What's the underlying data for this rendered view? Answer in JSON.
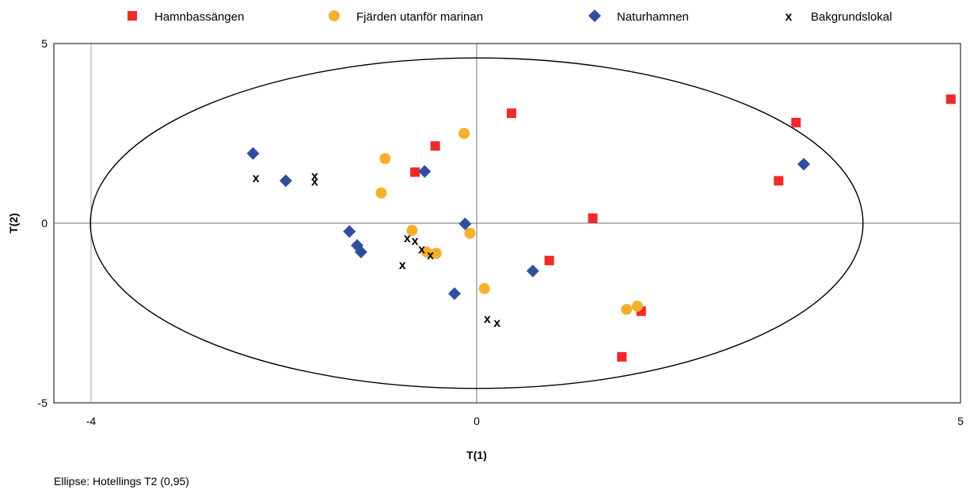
{
  "chart_data": {
    "type": "scatter",
    "title": "",
    "xlabel": "T(1)",
    "ylabel": "T(2)",
    "xlim": [
      -4,
      5
    ],
    "ylim": [
      -5,
      5
    ],
    "x_ticks": [
      -4,
      0,
      5
    ],
    "y_ticks": [
      -5,
      0,
      5
    ],
    "grid": "zero lines and x = -4 line",
    "legend_position": "top",
    "ellipse": {
      "label": "Ellipse: Hotellings T2 (0,95)",
      "center": [
        0,
        0
      ],
      "semi_axis_x": 4,
      "semi_axis_y": 4.6
    },
    "series": [
      {
        "name": "Hamnbassängen",
        "marker": "square",
        "color": "#ee2a2a",
        "points": [
          [
            0.36,
            3.06
          ],
          [
            -0.43,
            2.15
          ],
          [
            -0.64,
            1.42
          ],
          [
            3.3,
            2.8
          ],
          [
            3.12,
            1.18
          ],
          [
            4.9,
            3.45
          ],
          [
            1.2,
            0.14
          ],
          [
            0.75,
            -1.04
          ],
          [
            1.7,
            -2.45
          ],
          [
            1.5,
            -3.72
          ]
        ]
      },
      {
        "name": "Fjärden utanför marinan",
        "marker": "circle",
        "color": "#f5b02b",
        "points": [
          [
            -0.13,
            2.5
          ],
          [
            -0.95,
            1.8
          ],
          [
            -0.99,
            0.84
          ],
          [
            -0.67,
            -0.2
          ],
          [
            -0.07,
            -0.28
          ],
          [
            -0.52,
            -0.8
          ],
          [
            -0.42,
            -0.84
          ],
          [
            0.08,
            -1.82
          ],
          [
            1.55,
            -2.4
          ],
          [
            1.66,
            -2.31
          ]
        ]
      },
      {
        "name": "Naturhamnen",
        "marker": "diamond",
        "color": "#2f4f9e",
        "points": [
          [
            -2.32,
            1.94
          ],
          [
            -1.98,
            1.18
          ],
          [
            -0.54,
            1.44
          ],
          [
            3.38,
            1.64
          ],
          [
            -1.32,
            -0.23
          ],
          [
            -1.24,
            -0.62
          ],
          [
            -1.2,
            -0.8
          ],
          [
            -0.12,
            -0.02
          ],
          [
            0.58,
            -1.33
          ],
          [
            -0.23,
            -1.96
          ]
        ]
      },
      {
        "name": "Bakgrundslokal",
        "marker": "x",
        "color": "#000000",
        "points": [
          [
            -2.29,
            1.28
          ],
          [
            -1.68,
            1.33
          ],
          [
            -1.68,
            1.18
          ],
          [
            -0.72,
            -0.4
          ],
          [
            -0.64,
            -0.47
          ],
          [
            -0.57,
            -0.7
          ],
          [
            -0.48,
            -0.87
          ],
          [
            -0.77,
            -1.14
          ],
          [
            0.11,
            -2.64
          ],
          [
            0.21,
            -2.75
          ]
        ]
      }
    ]
  }
}
